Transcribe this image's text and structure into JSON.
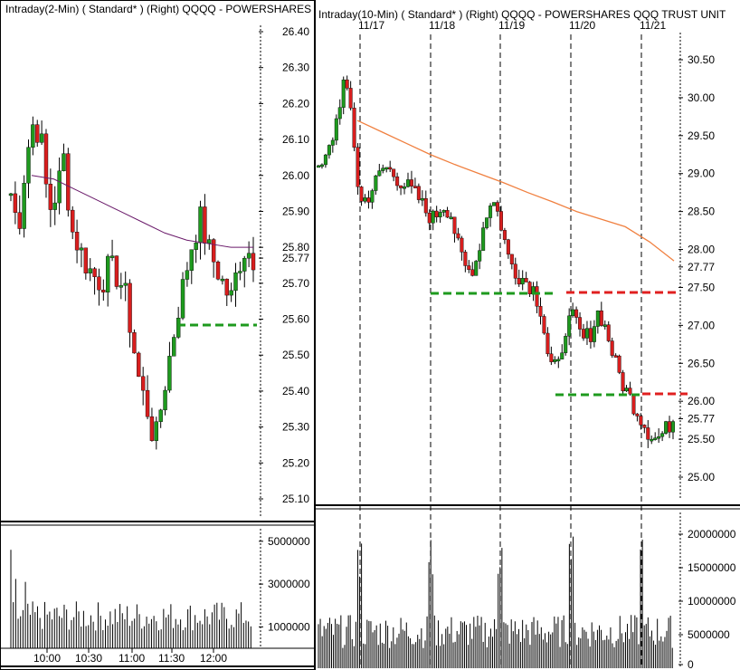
{
  "left": {
    "title": "Intraday(2-Min)  ( Standard* )     (Right)     QQQQ - POWERSHARES QQQ TRUST UNIT",
    "price_ticks": [
      "26.40",
      "26.30",
      "26.20",
      "26.10",
      "26.00",
      "25.90",
      "25.80",
      "25.77",
      "25.70",
      "25.60",
      "25.50",
      "25.40",
      "25.30",
      "25.20",
      "25.10"
    ],
    "volume_ticks": [
      "5000000",
      "3000000",
      "1000000"
    ],
    "time_ticks": [
      "10:00",
      "10:30",
      "11:00",
      "11:30",
      "12:00"
    ],
    "last_price": "25.77"
  },
  "right": {
    "title": "Intraday(10-Min)  ( Standard* )     (Right)     QQQQ - POWERSHARES QQQ TRUST UNIT",
    "date_labels": [
      "11/17",
      "11/18",
      "11/19",
      "11/20",
      "11/21"
    ],
    "price_ticks": [
      "30.50",
      "30.00",
      "29.50",
      "29.00",
      "28.50",
      "28.00",
      "27.77",
      "27.50",
      "27.00",
      "26.50",
      "26.00",
      "25.77",
      "25.50",
      "25.00"
    ],
    "volume_ticks": [
      "20000000",
      "15000000",
      "10000000",
      "5000000",
      "0"
    ],
    "last_price": "25.77"
  },
  "colors": {
    "up_candle": "#1e9a1e",
    "down_candle": "#d81e1e",
    "support_line": "#1e9a1e",
    "resistance_line": "#e02020",
    "moving_average_left": "#6a1a6a",
    "moving_average_right": "#f08040",
    "volume_bar": "#000000"
  },
  "chart_data": [
    {
      "type": "candlestick",
      "panel": "left",
      "interval": "2-Min",
      "symbol": "QQQQ",
      "ylim": [
        25.05,
        26.42
      ],
      "x_ticks": [
        "10:00",
        "10:30",
        "11:00",
        "11:30",
        "12:00"
      ],
      "close_approx": [
        25.95,
        25.85,
        26.05,
        26.15,
        26.1,
        25.9,
        25.95,
        26.05,
        25.85,
        25.8,
        25.75,
        25.72,
        25.7,
        25.75,
        25.72,
        25.68,
        25.55,
        25.42,
        25.35,
        25.25,
        25.38,
        25.5,
        25.62,
        25.72,
        25.82,
        25.88,
        25.8,
        25.75,
        25.7,
        25.65,
        25.75,
        25.8,
        25.77
      ],
      "moving_average": "declining from 26.00 to 25.80",
      "support_level": 25.58,
      "last": 25.77,
      "volume_ylim": [
        0,
        5500000
      ],
      "volume_ticks": [
        1000000,
        3000000,
        5000000
      ]
    },
    {
      "type": "candlestick",
      "panel": "right",
      "interval": "10-Min",
      "symbol": "QQQQ",
      "ylim": [
        24.85,
        30.7
      ],
      "x_labels": [
        "11/17",
        "11/18",
        "11/19",
        "11/20",
        "11/21"
      ],
      "close_approx": [
        29.0,
        29.2,
        29.6,
        30.2,
        29.8,
        28.6,
        28.7,
        28.9,
        29.1,
        29.0,
        28.9,
        28.8,
        28.7,
        28.5,
        28.4,
        28.6,
        28.5,
        28.0,
        27.7,
        27.8,
        28.3,
        28.7,
        28.4,
        27.9,
        27.7,
        27.6,
        27.5,
        27.2,
        26.5,
        26.4,
        27.0,
        27.1,
        26.8,
        26.9,
        27.2,
        26.9,
        26.5,
        26.2,
        26.0,
        25.8,
        25.6,
        25.5,
        25.6,
        25.77
      ],
      "moving_average": "declining from 29.70 to 27.85",
      "support_levels": [
        27.4,
        26.05
      ],
      "resistance_levels": [
        27.42,
        26.08
      ],
      "last": 25.77,
      "volume_ylim": [
        0,
        22000000
      ],
      "volume_ticks": [
        0,
        5000000,
        10000000,
        15000000,
        20000000
      ]
    }
  ]
}
